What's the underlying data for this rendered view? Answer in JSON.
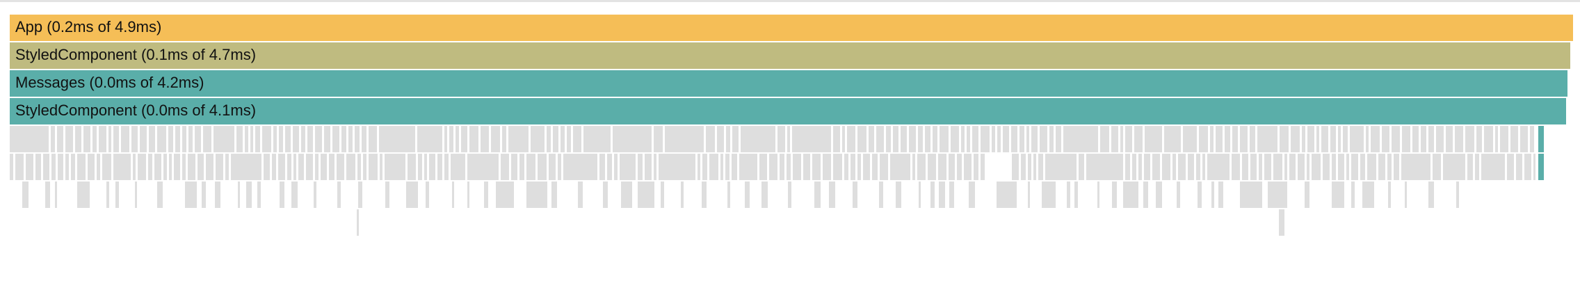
{
  "flamegraph": {
    "colors": {
      "app": "#f5be57",
      "styled_outer": "#bfbb80",
      "messages": "#5aaea9",
      "styled_inner": "#5aaea9",
      "unselected": "#dedede",
      "selected_child": "#5aaea9"
    },
    "nodes": [
      {
        "id": "app",
        "label": "App (0.2ms of 4.9ms)"
      },
      {
        "id": "styled-outer",
        "label": "StyledComponent (0.1ms of 4.7ms)"
      },
      {
        "id": "messages",
        "label": "Messages (0.0ms of 4.2ms)"
      },
      {
        "id": "styled-inner",
        "label": "StyledComponent (0.0ms of 4.1ms)"
      }
    ]
  }
}
